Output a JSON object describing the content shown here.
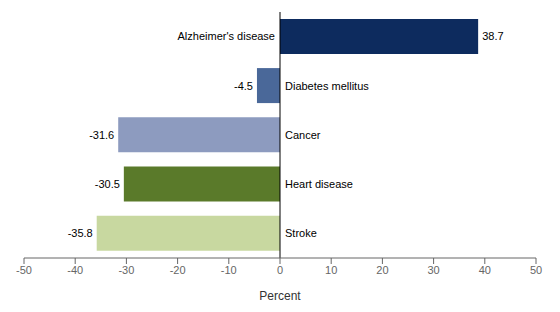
{
  "chart_data": {
    "type": "bar",
    "orientation": "horizontal",
    "categories": [
      "Alzheimer's disease",
      "Diabetes mellitus",
      "Cancer",
      "Heart disease",
      "Stroke"
    ],
    "values": [
      38.7,
      -4.5,
      -31.6,
      -30.5,
      -35.8
    ],
    "colors": [
      "#0d2b5e",
      "#4a6899",
      "#8d9bbf",
      "#5a7a2a",
      "#c8d8a0"
    ],
    "xlabel": "Percent",
    "xlim": [
      -50,
      50
    ],
    "xticks": [
      -50,
      -40,
      -30,
      -20,
      -10,
      0,
      10,
      20,
      30,
      40,
      50
    ],
    "data_labels": true,
    "grid": false
  }
}
